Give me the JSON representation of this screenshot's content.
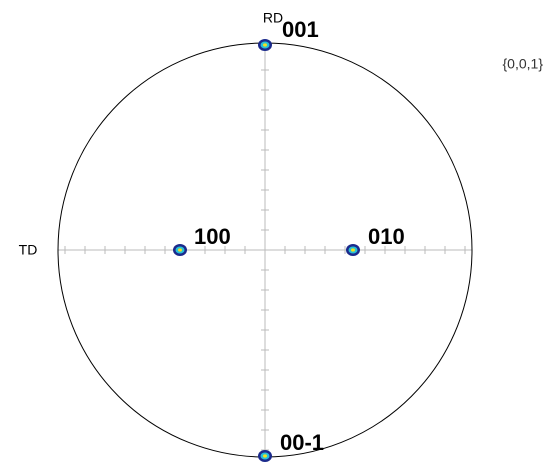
{
  "figure": {
    "name": "{0,0,1}",
    "axes": {
      "top": "RD",
      "left": "TD"
    },
    "poles": [
      {
        "label": "001"
      },
      {
        "label": "100"
      },
      {
        "label": "010"
      },
      {
        "label": "00-1"
      }
    ]
  }
}
